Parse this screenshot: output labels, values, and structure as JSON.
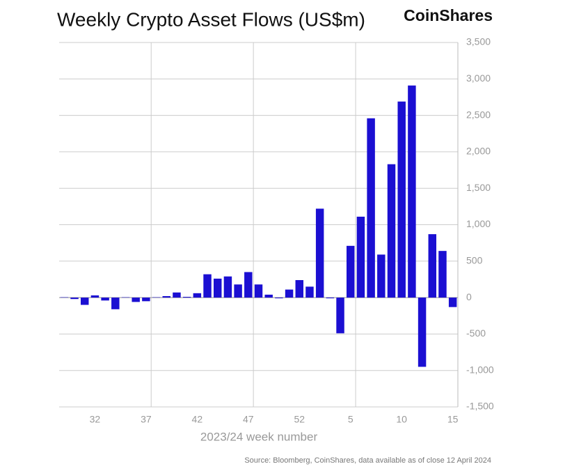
{
  "chart_data": {
    "type": "bar",
    "title": "Weekly Crypto Asset Flows (US$m)",
    "brand": "CoinShares",
    "x_label": "2023/24 week number",
    "source": "Source: Bloomberg, CoinShares, data available as of close 12 April 2024",
    "categories": [
      null,
      null,
      null,
      "32",
      null,
      null,
      null,
      null,
      "37",
      null,
      null,
      null,
      null,
      "42",
      null,
      null,
      null,
      null,
      "47",
      null,
      null,
      null,
      null,
      "52",
      null,
      null,
      null,
      null,
      "5",
      null,
      null,
      null,
      null,
      "10",
      null,
      null,
      null,
      null,
      "15"
    ],
    "values": [
      5,
      -20,
      -100,
      30,
      -40,
      -160,
      5,
      -60,
      -50,
      5,
      20,
      70,
      10,
      60,
      320,
      260,
      290,
      180,
      350,
      180,
      40,
      -10,
      110,
      240,
      150,
      1220,
      -10,
      -490,
      710,
      1110,
      2460,
      590,
      1830,
      2690,
      2910,
      -950,
      870,
      640,
      -130
    ],
    "color": "#1b0fd2",
    "ylim": [
      -1500,
      3500
    ],
    "yticks": [
      {
        "value": -1500,
        "label": "-1,500"
      },
      {
        "value": -1000,
        "label": "-1,000"
      },
      -500,
      0,
      500,
      {
        "value": 1000,
        "label": "1,000"
      },
      {
        "value": 1500,
        "label": "1,500"
      },
      {
        "value": 2000,
        "label": "2,000"
      },
      {
        "value": 2500,
        "label": "2,500"
      },
      {
        "value": 3000,
        "label": "3,000"
      },
      {
        "value": 3500,
        "label": "3,500"
      }
    ],
    "grid": true
  }
}
